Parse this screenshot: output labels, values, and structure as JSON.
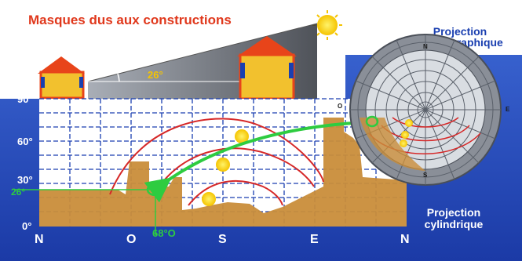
{
  "title": "Masques dus aux constructions",
  "mask_angle_label": "26°",
  "stereo_projection": {
    "line1": "Projection",
    "line2": "stéréographique"
  },
  "cyl_projection": {
    "line1": "Projection",
    "line2": "cylindrique"
  },
  "y_ticks": [
    "90°",
    "60°",
    "30°",
    "0°"
  ],
  "mask_height_label": "26°",
  "azimuth_label": "68°O",
  "directions": [
    "N",
    "O",
    "S",
    "E",
    "N"
  ],
  "stereo_cardinals": {
    "top": "N",
    "left": "O",
    "right": "E",
    "bottom": "S"
  },
  "colors": {
    "background": "#1a3fb0",
    "title": "#e0381c",
    "mask_fill": "#c98d3a",
    "sun_paths": "#d62828",
    "highlight": "#2ecc40",
    "houses_wall": "#f2c12e",
    "houses_roof": "#e8441a"
  }
}
